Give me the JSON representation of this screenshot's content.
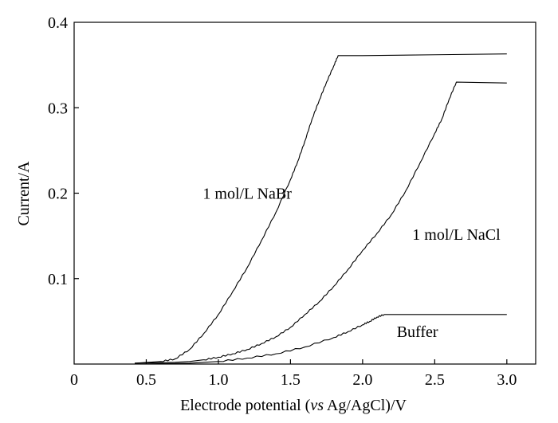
{
  "chart_data": {
    "type": "line",
    "title": "",
    "xlabel": {
      "prefix": "Electrode potential (",
      "italic": "vs",
      "suffix": " Ag/AgCl)/V"
    },
    "ylabel": "Current/A",
    "xlim": [
      0,
      3.2
    ],
    "ylim": [
      0,
      0.4
    ],
    "x_ticks": [
      {
        "value": 0,
        "label": "0"
      },
      {
        "value": 0.5,
        "label": "0.5"
      },
      {
        "value": 1.0,
        "label": "1.0"
      },
      {
        "value": 1.5,
        "label": "1.5"
      },
      {
        "value": 2.0,
        "label": "2.0"
      },
      {
        "value": 2.5,
        "label": "2.5"
      },
      {
        "value": 3.0,
        "label": "3.0"
      }
    ],
    "y_ticks": [
      {
        "value": 0.1,
        "label": "0.1"
      },
      {
        "value": 0.2,
        "label": "0.2"
      },
      {
        "value": 0.3,
        "label": "0.3"
      },
      {
        "value": 0.4,
        "label": "0.4"
      }
    ],
    "grid": false,
    "series": [
      {
        "name": "1 mol/L NaBr",
        "label_at": [
          1.2,
          0.2
        ],
        "points": [
          [
            0.42,
            0.001
          ],
          [
            0.6,
            0.003
          ],
          [
            0.7,
            0.006
          ],
          [
            0.8,
            0.017
          ],
          [
            0.9,
            0.036
          ],
          [
            1.0,
            0.058
          ],
          [
            1.1,
            0.085
          ],
          [
            1.2,
            0.113
          ],
          [
            1.3,
            0.145
          ],
          [
            1.4,
            0.178
          ],
          [
            1.5,
            0.216
          ],
          [
            1.55,
            0.237
          ],
          [
            1.6,
            0.261
          ],
          [
            1.65,
            0.287
          ],
          [
            1.7,
            0.309
          ],
          [
            1.75,
            0.33
          ],
          [
            1.8,
            0.349
          ],
          [
            1.83,
            0.361
          ],
          [
            2.0,
            0.361
          ],
          [
            2.5,
            0.362
          ],
          [
            3.0,
            0.363
          ]
        ]
      },
      {
        "name": "1 mol/L NaCl",
        "label_at": [
          2.65,
          0.152
        ],
        "points": [
          [
            0.42,
            0.001
          ],
          [
            0.7,
            0.002
          ],
          [
            0.8,
            0.003
          ],
          [
            0.9,
            0.005
          ],
          [
            1.0,
            0.008
          ],
          [
            1.1,
            0.012
          ],
          [
            1.2,
            0.017
          ],
          [
            1.3,
            0.024
          ],
          [
            1.4,
            0.032
          ],
          [
            1.5,
            0.043
          ],
          [
            1.6,
            0.058
          ],
          [
            1.7,
            0.073
          ],
          [
            1.8,
            0.091
          ],
          [
            1.9,
            0.111
          ],
          [
            2.0,
            0.133
          ],
          [
            2.1,
            0.153
          ],
          [
            2.2,
            0.175
          ],
          [
            2.3,
            0.203
          ],
          [
            2.4,
            0.236
          ],
          [
            2.5,
            0.27
          ],
          [
            2.55,
            0.287
          ],
          [
            2.6,
            0.31
          ],
          [
            2.65,
            0.33
          ],
          [
            3.0,
            0.329
          ]
        ]
      },
      {
        "name": "Buffer",
        "label_at": [
          2.38,
          0.038
        ],
        "points": [
          [
            0.42,
            0.0
          ],
          [
            0.8,
            0.001
          ],
          [
            1.0,
            0.003
          ],
          [
            1.2,
            0.007
          ],
          [
            1.4,
            0.012
          ],
          [
            1.6,
            0.02
          ],
          [
            1.8,
            0.031
          ],
          [
            1.9,
            0.038
          ],
          [
            2.0,
            0.046
          ],
          [
            2.05,
            0.05
          ],
          [
            2.1,
            0.055
          ],
          [
            2.15,
            0.058
          ],
          [
            3.0,
            0.058
          ]
        ]
      }
    ]
  }
}
